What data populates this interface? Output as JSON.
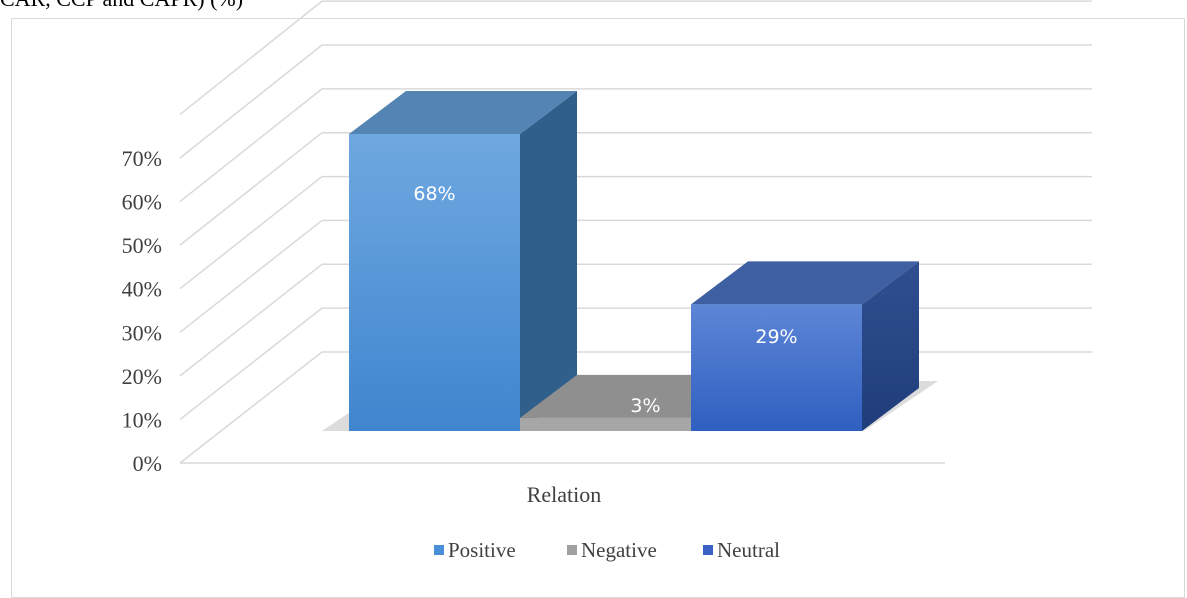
{
  "caption": "CAR, CCP and CAPR) (%)",
  "chart_data": {
    "type": "bar",
    "categories": [
      "Relation"
    ],
    "series": [
      {
        "name": "Positive",
        "values": [
          68
        ],
        "color": "#4a90d9"
      },
      {
        "name": "Negative",
        "values": [
          3
        ],
        "color": "#9e9e9e"
      },
      {
        "name": "Neutral",
        "values": [
          29
        ],
        "color": "#3a6fcc"
      }
    ],
    "data_labels": [
      "68%",
      "3%",
      "29%"
    ],
    "y_ticks": [
      "0%",
      "10%",
      "20%",
      "30%",
      "40%",
      "50%",
      "60%",
      "70%"
    ],
    "ylim": [
      0,
      70
    ],
    "grid": true,
    "legend_position": "bottom",
    "three_d": true
  }
}
